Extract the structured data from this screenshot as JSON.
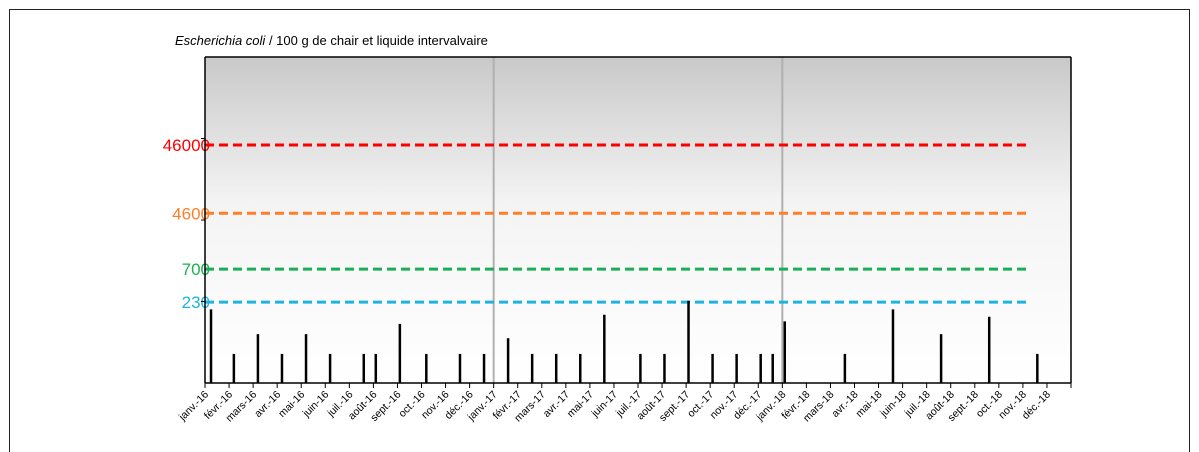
{
  "chart_data": {
    "type": "bar",
    "title": {
      "italic": "Escherichia coli",
      "rest": " / 100 g de chair et liquide intervalvaire"
    },
    "xlabel": "",
    "ylabel": "",
    "grid": false,
    "legend": "none",
    "x_tick_labels": [
      "janv.-16",
      "févr.-16",
      "mars-16",
      "avr.-16",
      "mai-16",
      "juin-16",
      "juil.-16",
      "août-16",
      "sept.-16",
      "oct.-16",
      "nov.-16",
      "déc.-16",
      "janv.-17",
      "févr.-17",
      "mars-17",
      "avr.-17",
      "mai-17",
      "juin-17",
      "juil.-17",
      "août-17",
      "sept.-17",
      "oct.-17",
      "nov.-17",
      "déc.-17",
      "janv.-18",
      "févr.-18",
      "mars-18",
      "avr.-18",
      "mai-18",
      "juin-18",
      "juil.-18",
      "août-18",
      "sept.-18",
      "oct.-18",
      "nov.-18",
      "déc.-18"
    ],
    "x_range_months": [
      0,
      36
    ],
    "year_separators_months": [
      12,
      24
    ],
    "y_scale": "log",
    "thresholds": [
      {
        "label": "46000",
        "value": 46000,
        "color": "#ff0000"
      },
      {
        "label": "4600",
        "value": 4600,
        "color": "#ff7f27"
      },
      {
        "label": "700",
        "value": 700,
        "color": "#1aaf54"
      },
      {
        "label": "230",
        "value": 230,
        "color": "#1fb4e0"
      }
    ],
    "points": [
      {
        "month": 0.25,
        "value": 180
      },
      {
        "month": 1.2,
        "value": 40
      },
      {
        "month": 2.2,
        "value": 78
      },
      {
        "month": 3.2,
        "value": 40
      },
      {
        "month": 4.2,
        "value": 78
      },
      {
        "month": 5.2,
        "value": 40
      },
      {
        "month": 6.6,
        "value": 40
      },
      {
        "month": 7.1,
        "value": 40
      },
      {
        "month": 8.1,
        "value": 110
      },
      {
        "month": 9.2,
        "value": 40
      },
      {
        "month": 10.6,
        "value": 40
      },
      {
        "month": 11.6,
        "value": 40
      },
      {
        "month": 12.6,
        "value": 68
      },
      {
        "month": 13.6,
        "value": 40
      },
      {
        "month": 14.6,
        "value": 40
      },
      {
        "month": 15.6,
        "value": 40
      },
      {
        "month": 16.6,
        "value": 150
      },
      {
        "month": 18.1,
        "value": 40
      },
      {
        "month": 19.1,
        "value": 40
      },
      {
        "month": 20.1,
        "value": 240
      },
      {
        "month": 21.1,
        "value": 40
      },
      {
        "month": 22.1,
        "value": 40
      },
      {
        "month": 23.1,
        "value": 40
      },
      {
        "month": 23.6,
        "value": 40
      },
      {
        "month": 24.1,
        "value": 120
      },
      {
        "month": 26.6,
        "value": 40
      },
      {
        "month": 28.6,
        "value": 180
      },
      {
        "month": 30.6,
        "value": 78
      },
      {
        "month": 32.6,
        "value": 140
      },
      {
        "month": 34.6,
        "value": 40
      }
    ]
  }
}
